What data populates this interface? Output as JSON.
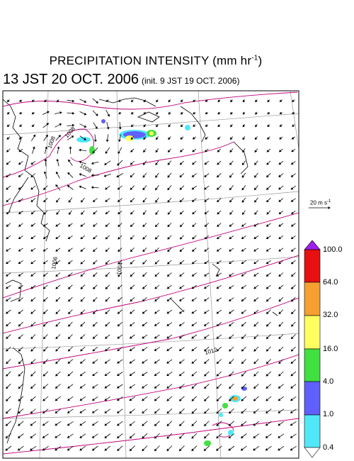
{
  "title": "PRECIPITATION INTENSITY (mm hr",
  "title_sup": "-1",
  "title_end": ")",
  "subtitle": "13 JST 20 OCT. 2006",
  "init_text": "(init. 9 JST 19 OCT. 2006)",
  "reference_vector": {
    "label": "20 m s",
    "sup": "-1"
  },
  "colorbar": {
    "labels": [
      "100.0",
      "64.0",
      "32.0",
      "16.0",
      "4.0",
      "1.0",
      "0.4"
    ],
    "colors": [
      "#a020f0",
      "#e81010",
      "#f5a030",
      "#ffff60",
      "#40e040",
      "#6060ff",
      "#50e8f8",
      "#ffffff"
    ]
  },
  "isobars": [
    {
      "label": "1008"
    },
    {
      "label": "1008"
    },
    {
      "label": "1008"
    },
    {
      "label": "1006"
    },
    {
      "label": "1004"
    },
    {
      "label": "1012"
    }
  ],
  "legend_colors": {
    "isobar": "#c0007a",
    "grid": "#a0a0a0"
  }
}
